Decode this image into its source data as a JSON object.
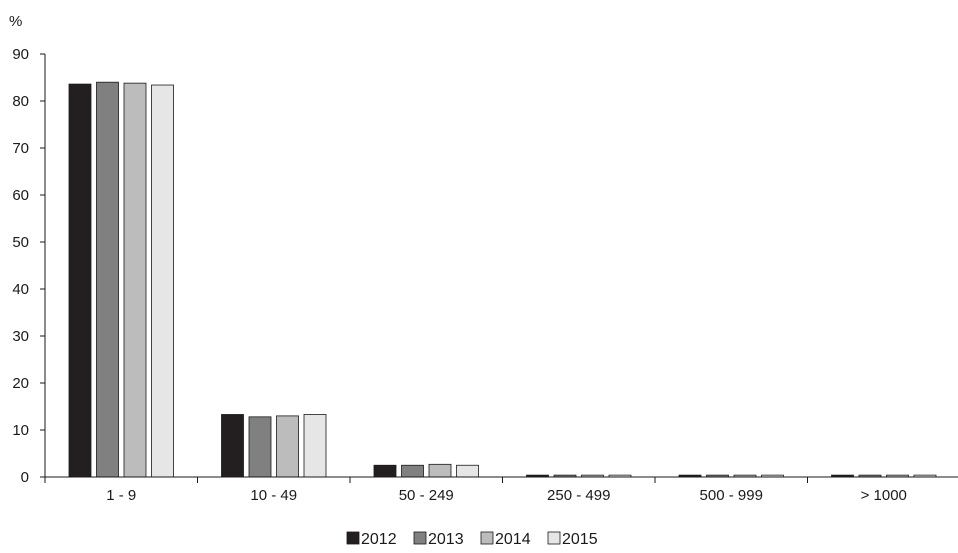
{
  "chart_data": {
    "type": "bar",
    "ylabel": "%",
    "xlabel": "",
    "title": "",
    "ylim": [
      0,
      90
    ],
    "yticks": [
      0,
      10,
      20,
      30,
      40,
      50,
      60,
      70,
      80,
      90
    ],
    "grid": false,
    "legend_position": "bottom",
    "categories": [
      "1 - 9",
      "10 - 49",
      "50 - 249",
      "250 - 499",
      "500 - 999",
      "> 1000"
    ],
    "series": [
      {
        "name": "2012",
        "color": "#231f20",
        "values": [
          83.6,
          13.3,
          2.5,
          0.4,
          0.4,
          0.4
        ]
      },
      {
        "name": "2013",
        "color": "#808080",
        "values": [
          84.0,
          12.8,
          2.5,
          0.4,
          0.4,
          0.4
        ]
      },
      {
        "name": "2014",
        "color": "#bcbcbc",
        "values": [
          83.8,
          13.0,
          2.7,
          0.4,
          0.4,
          0.4
        ]
      },
      {
        "name": "2015",
        "color": "#e6e6e6",
        "values": [
          83.4,
          13.3,
          2.5,
          0.4,
          0.4,
          0.4
        ]
      }
    ]
  }
}
